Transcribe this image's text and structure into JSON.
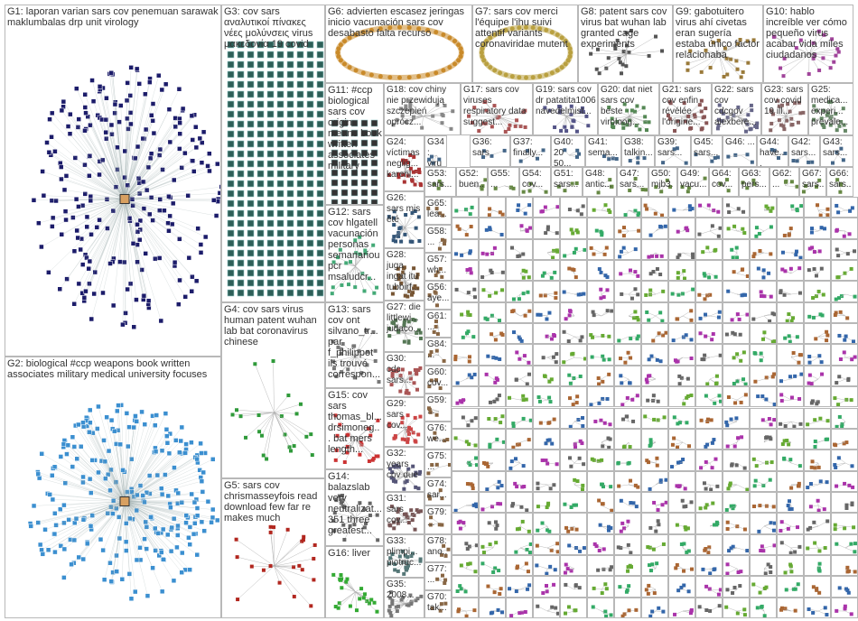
{
  "groups": [
    {
      "label": "G1: laporan varian sars cov penemuan sarawak maklumbalas drp unit virology"
    },
    {
      "label": "G2: biological #ccp weapons book written associates military medical university focuses"
    },
    {
      "label": "G3: cov sars αναλυτικοί πίνακες νέες μολύνσεις virus μακεδονία 19 covid"
    },
    {
      "label": "G4: cov sars virus human patent wuhan lab bat coronavirus chinese"
    },
    {
      "label": "G5: sars cov chrismasseyfois read download few far re makes much"
    },
    {
      "label": "G6: advierten escasez jeringas inicio vacunación sars cov desabasto falta recurso"
    },
    {
      "label": "G7: sars cov merci l'équipe l'ihu suivi attentif variants coronaviridae mutent"
    },
    {
      "label": "G8: patent sars cov virus bat wuhan lab granted cage experiments"
    },
    {
      "label": "G9: gabotuitero virus ahí civetas eran sugería estaba único factor relacionaba"
    },
    {
      "label": "G10: hablo increíble ver cómo pequeño virus acabar vida miles ciudadanos"
    },
    {
      "label": "G11: #ccp biological sars cov origin means book written associates military"
    },
    {
      "label": "G12: sars cov hlgatell vacunación personas semanariou pcr msaludcr..."
    },
    {
      "label": "G13: sars cov ont silvano_tr... par f_philippot ils trouvé correspon..."
    },
    {
      "label": "G15: cov sars thomas_bl... drsimoneg... bat mers length..."
    },
    {
      "label": "G14: balazslab very neutralizat... 351 three greatest..."
    },
    {
      "label": "G16: liver"
    },
    {
      "label": "G18: cov chiny nie przewidują szczepień oprócz..."
    },
    {
      "label": "G17: sars cov viruses respiratory data suggest..."
    },
    {
      "label": "G19: sars cov dr patatita1006 navedelmist..."
    },
    {
      "label": "G20: dat niet sars cov beste viroloog..."
    },
    {
      "label": "G21: sars cov enfin révélée l'origine..."
    },
    {
      "label": "G22: sars cov cdcgov alexbere..."
    },
    {
      "label": "G23: sars cov covid 19 ill..."
    },
    {
      "label": "G25: medica... experi... prevale..."
    },
    {
      "label": "G24: víctimas neglig... karenl..."
    },
    {
      "label": "G26: sars mis été"
    },
    {
      "label": "G28: juga ingat itu tubbirf..."
    },
    {
      "label": "G27: die littlewi... judaco..."
    },
    {
      "label": "G30: cdc sars..."
    },
    {
      "label": "G29: sars cov..."
    },
    {
      "label": "G32: years cov due"
    },
    {
      "label": "G31: sars cov..."
    },
    {
      "label": "G33: plimpi... piotruc..."
    },
    {
      "label": "G35: 2008..."
    },
    {
      "label": "G34: virus"
    },
    {
      "label": "G36: sars"
    },
    {
      "label": "G37: finally..."
    },
    {
      "label": "G40: 20 50..."
    },
    {
      "label": "G41: sema..."
    },
    {
      "label": "G38: talkin..."
    },
    {
      "label": "G39: sars..."
    },
    {
      "label": "G45: sars..."
    },
    {
      "label": "G46: ..."
    },
    {
      "label": "G44: have..."
    },
    {
      "label": "G42: sars..."
    },
    {
      "label": "G43: sars..."
    },
    {
      "label": "G53: sars..."
    },
    {
      "label": "G52: buen..."
    },
    {
      "label": "G55: ..."
    },
    {
      "label": "G54: cov..."
    },
    {
      "label": "G51: sars..."
    },
    {
      "label": "G48: antic..."
    },
    {
      "label": "G47: sars..."
    },
    {
      "label": "G50: mjb3..."
    },
    {
      "label": "G49: vacu..."
    },
    {
      "label": "G64: cov..."
    },
    {
      "label": "G63: pers..."
    },
    {
      "label": "G62: ..."
    },
    {
      "label": "G67: sars..."
    },
    {
      "label": "G66: sars..."
    },
    {
      "label": "G65: lea..."
    },
    {
      "label": "G58: ..."
    },
    {
      "label": "G57: wh..."
    },
    {
      "label": "G56: aye..."
    },
    {
      "label": "G61: ..."
    },
    {
      "label": "G84: ..."
    },
    {
      "label": "G60: cov..."
    },
    {
      "label": "G59: ..."
    },
    {
      "label": "G76: we..."
    },
    {
      "label": "G75: ..."
    },
    {
      "label": "G74: sar..."
    },
    {
      "label": "G79: ..."
    },
    {
      "label": "G78: ano..."
    },
    {
      "label": "G77: ..."
    },
    {
      "label": "G70: tak..."
    }
  ]
}
